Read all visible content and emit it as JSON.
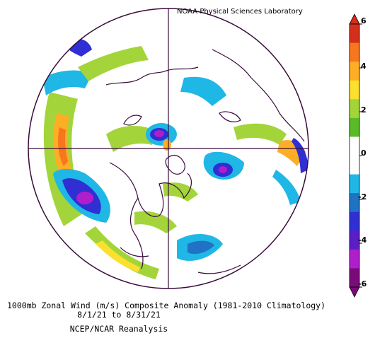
{
  "credit": "NOAA Physical Sciences Laboratory",
  "caption": {
    "line1": "1000mb Zonal Wind (m/s) Composite Anomaly (1981-2010 Climatology)",
    "line2": "8/1/21   to 8/31/21",
    "line3": "NCEP/NCAR Reanalysis"
  },
  "colorbar": {
    "ticks": [
      "6",
      "4",
      "2",
      "0",
      "-2",
      "-4",
      "-6"
    ],
    "colors": [
      "#d42f1c",
      "#f7761e",
      "#fdae24",
      "#fbe02d",
      "#a3d53b",
      "#5abb28",
      "#ffffff",
      "#ffffff",
      "#1fb7e6",
      "#1f72c4",
      "#2f2fd3",
      "#5a1ec4",
      "#b01ecc",
      "#7a0c7a"
    ]
  },
  "map": {
    "projection": "north polar stereographic",
    "variable": "1000mb zonal wind anomaly",
    "units": "m/s"
  }
}
